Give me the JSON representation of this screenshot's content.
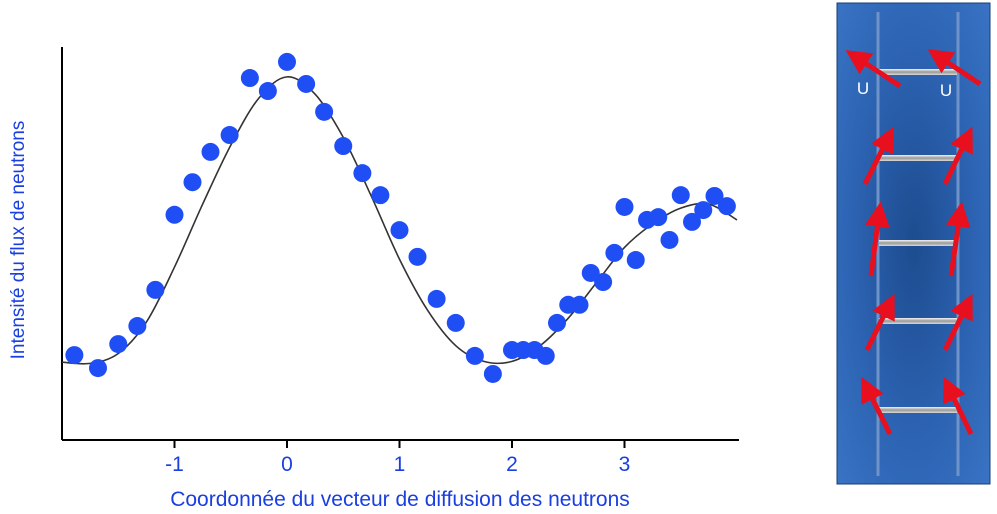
{
  "chart_data": {
    "type": "scatter",
    "x_label": "Coordonnée du vecteur de diffusion des neutrons",
    "y_label": "Intensité du flux de neutrons",
    "xlim": [
      -2,
      4
    ],
    "ylim": [
      0,
      100
    ],
    "xticks": [
      -1,
      0,
      1,
      2,
      3
    ],
    "points": {
      "color": "#1f4ef5",
      "x": [
        -1.89,
        -1.68,
        -1.5,
        -1.33,
        -1.17,
        -1.0,
        -0.84,
        -0.68,
        -0.51,
        -0.33,
        -0.17,
        0,
        0.17,
        0.33,
        0.5,
        0.67,
        0.83,
        1.0,
        1.16,
        1.33,
        1.5,
        1.67,
        1.83,
        2.0,
        2.1,
        2.2,
        2.3,
        2.4,
        2.5,
        2.6,
        2.7,
        2.81,
        2.91,
        3.0,
        3.1,
        3.2,
        3.3,
        3.4,
        3.5,
        3.6,
        3.7,
        3.8,
        3.91
      ],
      "values": [
        21.6,
        18.3,
        24.4,
        29.0,
        38.2,
        57.3,
        65.6,
        73.3,
        77.6,
        92.1,
        88.8,
        96.2,
        90.6,
        83.5,
        74.8,
        67.9,
        62.3,
        53.4,
        46.6,
        35.9,
        29.8,
        21.4,
        16.8,
        22.9,
        22.9,
        22.9,
        21.4,
        29.8,
        34.4,
        34.4,
        42.5,
        40.2,
        47.6,
        59.3,
        45.8,
        56.0,
        56.7,
        50.9,
        62.3,
        55.5,
        58.5,
        62.1,
        59.5
      ]
    },
    "fit": {
      "color": "#333333",
      "x": [
        -2,
        -1.75,
        -1.5,
        -1.25,
        -1,
        -0.75,
        -0.5,
        -0.25,
        0,
        0.25,
        0.5,
        0.75,
        1,
        1.25,
        1.5,
        1.75,
        2,
        2.25,
        2.5,
        2.75,
        3,
        3.25,
        3.5,
        3.75,
        4
      ],
      "values": [
        19.8,
        19.5,
        22,
        30,
        44,
        60,
        75,
        87,
        92.4,
        88,
        77,
        62,
        46,
        33,
        24,
        20,
        20,
        24,
        31,
        40,
        49,
        55,
        59,
        60,
        56
      ]
    }
  },
  "diagram": {
    "labels": [
      "U",
      "U"
    ]
  }
}
